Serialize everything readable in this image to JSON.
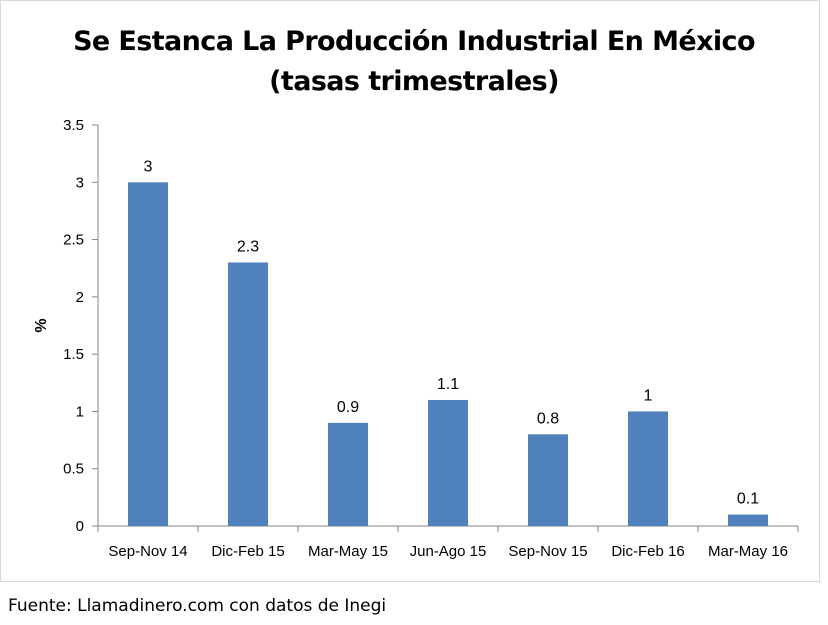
{
  "source_text": "Fuente: Llamadinero.com  con datos de Inegi",
  "chart_data": {
    "type": "bar",
    "title": "Se Estanca La Producción Industrial En México",
    "subtitle": "(tasas trimestrales)",
    "ylabel": "%",
    "xlabel": "",
    "categories": [
      "Sep-Nov 14",
      "Dic-Feb 15",
      "Mar-May 15",
      "Jun-Ago 15",
      "Sep-Nov 15",
      "Dic-Feb 16",
      "Mar-May 16"
    ],
    "values": [
      3,
      2.3,
      0.9,
      1.1,
      0.8,
      1,
      0.1
    ],
    "data_labels": [
      "3",
      "2.3",
      "0.9",
      "1.1",
      "0.8",
      "1",
      "0.1"
    ],
    "y_ticks": [
      "0",
      "0.5",
      "1",
      "1.5",
      "2",
      "2.5",
      "3",
      "3.5"
    ],
    "ylim": [
      0,
      3.5
    ],
    "grid": false,
    "legend": "none",
    "bar_color": "#4f81bd"
  }
}
